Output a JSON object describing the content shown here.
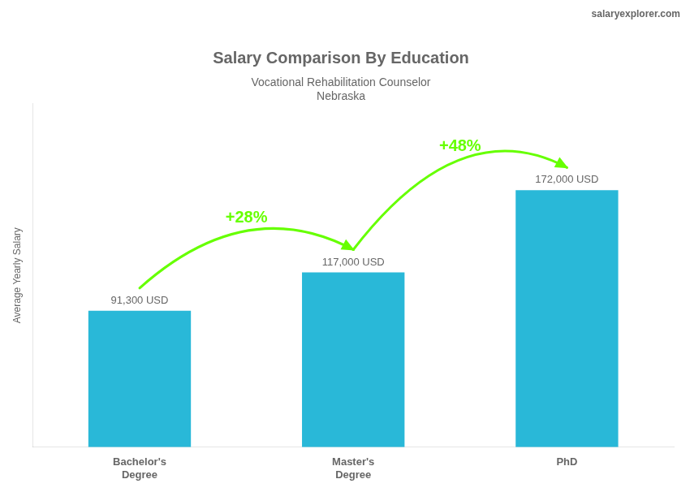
{
  "chart_data": {
    "type": "bar",
    "title": "Salary Comparison By Education",
    "subtitle": [
      "Vocational Rehabilitation Counselor",
      "Nebraska"
    ],
    "y_label": "Average Yearly Salary",
    "categories": [
      "Bachelor's\nDegree",
      "Master's\nDegree",
      "PhD"
    ],
    "values": [
      91300,
      117000,
      172000
    ],
    "value_labels": [
      "91,300 USD",
      "117,000 USD",
      "172,000 USD"
    ],
    "data_labels": true,
    "color": "#29b8d8",
    "ylim": [
      0,
      230000
    ],
    "grid": false,
    "tick_labels": "x",
    "annotations": [
      {
        "text": "+28%",
        "from": "Bachelor's\nDegree",
        "to": "Master's\nDegree",
        "color": "#66ff00"
      },
      {
        "text": "+48%",
        "from": "Master's\nDegree",
        "to": "PhD",
        "color": "#66ff00"
      },
      {
        "text": "salaryexplorer.com"
      }
    ]
  }
}
